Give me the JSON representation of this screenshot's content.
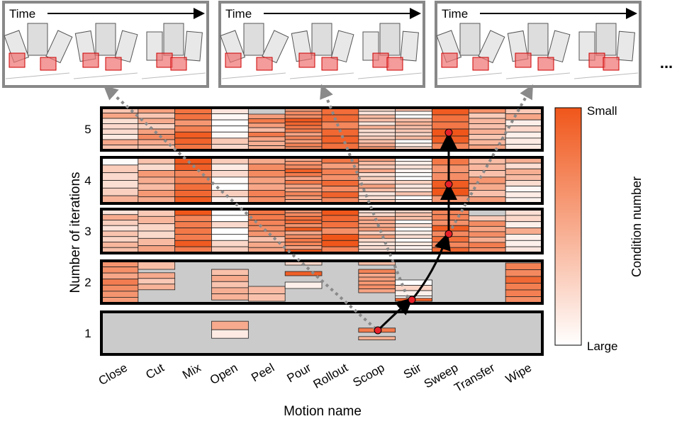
{
  "panels": [
    {
      "label": "Time"
    },
    {
      "label": "Time"
    },
    {
      "label": "Time"
    }
  ],
  "ellipsis": "...",
  "y_axis": {
    "label": "Number of iterations",
    "ticks": [
      "1",
      "2",
      "3",
      "4",
      "5"
    ]
  },
  "x_axis": {
    "label": "Motion name",
    "categories": [
      "Close",
      "Cut",
      "Mix",
      "Open",
      "Peel",
      "Pour",
      "Rollout",
      "Scoop",
      "Stir",
      "Sweep",
      "Transfer",
      "Wipe"
    ]
  },
  "colorbar": {
    "label": "Condition number",
    "top": "Small",
    "bottom": "Large"
  }
}
